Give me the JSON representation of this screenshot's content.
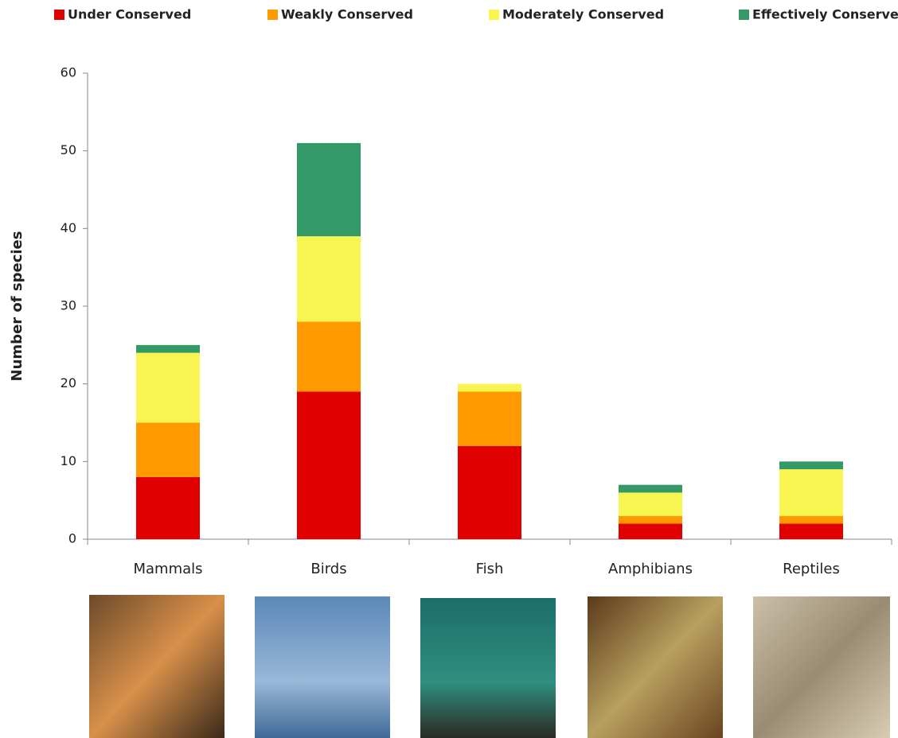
{
  "chart_data": {
    "type": "stacked_bar",
    "y_label": "Number of species",
    "categories": [
      "Mammals",
      "Birds",
      "Fish",
      "Amphibians",
      "Reptiles"
    ],
    "series": [
      {
        "name": "Under Conserved",
        "color": "#e00000",
        "values": [
          8,
          19,
          12,
          2,
          2
        ]
      },
      {
        "name": "Weakly Conserved",
        "color": "#ff9900",
        "values": [
          7,
          9,
          7,
          1,
          1
        ]
      },
      {
        "name": "Moderately Conserved",
        "color": "#f8f550",
        "values": [
          9,
          11,
          1,
          3,
          6
        ]
      },
      {
        "name": "Effectively Conserved",
        "color": "#339966",
        "values": [
          1,
          12,
          0,
          1,
          1
        ]
      }
    ],
    "ylim": [
      0,
      60
    ],
    "yticks": [
      0,
      10,
      20,
      30,
      40,
      50,
      60
    ],
    "grid": false,
    "legend": "top"
  }
}
